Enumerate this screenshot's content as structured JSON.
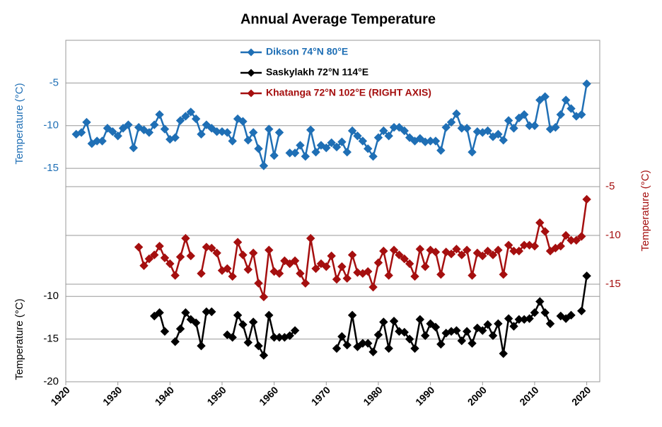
{
  "chart_data": {
    "type": "line",
    "title": "Annual Average Temperature",
    "ylabel": "Temperature (°C)",
    "y2label": "Temperature (°C)",
    "y3label": "Temperature (°C)",
    "x": [
      1922,
      1923,
      1924,
      1925,
      1926,
      1927,
      1928,
      1929,
      1930,
      1931,
      1932,
      1933,
      1934,
      1935,
      1936,
      1937,
      1938,
      1939,
      1940,
      1941,
      1942,
      1943,
      1944,
      1945,
      1946,
      1947,
      1948,
      1949,
      1950,
      1951,
      1952,
      1953,
      1954,
      1955,
      1956,
      1957,
      1958,
      1959,
      1960,
      1961,
      1962,
      1963,
      1964,
      1965,
      1966,
      1967,
      1968,
      1969,
      1970,
      1971,
      1972,
      1973,
      1974,
      1975,
      1976,
      1977,
      1978,
      1979,
      1980,
      1981,
      1982,
      1983,
      1984,
      1985,
      1986,
      1987,
      1988,
      1989,
      1990,
      1991,
      1992,
      1993,
      1994,
      1995,
      1996,
      1997,
      1998,
      1999,
      2000,
      2001,
      2002,
      2003,
      2004,
      2005,
      2006,
      2007,
      2008,
      2009,
      2010,
      2011,
      2012,
      2013,
      2014,
      2015,
      2016,
      2017,
      2018,
      2019,
      2020
    ],
    "xlim": [
      1920,
      2022.5
    ],
    "xticks": [
      1920,
      1930,
      1940,
      1950,
      1960,
      1970,
      1980,
      1990,
      2000,
      2010,
      2020
    ],
    "ylim": [
      -40,
      0
    ],
    "yticks": [
      -5,
      -10,
      -15
    ],
    "y2lim": [
      -25,
      10
    ],
    "y2ticks": [
      -5,
      -10,
      -15
    ],
    "y3lim": [
      -20,
      20
    ],
    "y3ticks": [
      -10,
      -15,
      -20
    ],
    "grid": true,
    "legend": "top-left",
    "series": [
      {
        "name": "Dikson 74°N 80°E",
        "color": "#1f6fb5",
        "axis": "y",
        "values": [
          -11.0,
          -10.8,
          -9.6,
          -12.1,
          -11.8,
          -11.8,
          -10.3,
          -10.7,
          -11.2,
          -10.3,
          -9.9,
          -12.6,
          -10.2,
          -10.5,
          -10.8,
          -9.9,
          -8.7,
          -10.4,
          -11.6,
          -11.4,
          -9.4,
          -8.9,
          -8.4,
          -9.2,
          -11.0,
          -9.9,
          -10.3,
          -10.7,
          -10.7,
          -10.8,
          -11.8,
          -9.2,
          -9.5,
          -11.7,
          -10.8,
          -12.7,
          -14.7,
          -10.4,
          -13.5,
          -10.8,
          null,
          -13.2,
          -13.2,
          -12.3,
          -13.6,
          -10.5,
          -13.1,
          -12.3,
          -12.6,
          -12.0,
          -12.5,
          -11.9,
          -13.1,
          -10.6,
          -11.2,
          -11.8,
          -12.7,
          -13.6,
          -11.4,
          -10.6,
          -11.2,
          -10.2,
          -10.2,
          -10.6,
          -11.4,
          -11.8,
          -11.5,
          -11.9,
          -11.8,
          -11.8,
          -12.9,
          -10.2,
          -9.6,
          -8.6,
          -10.3,
          -10.3,
          -13.1,
          -10.7,
          -10.8,
          -10.6,
          -11.3,
          -11.0,
          -11.7,
          -9.4,
          -10.3,
          -9.1,
          -8.7,
          -10.0,
          -10.0,
          -7.0,
          -6.6,
          -10.4,
          -10.2,
          -8.7,
          -7.0,
          -8.0,
          -8.9,
          -8.7,
          -5.1
        ]
      },
      {
        "name": "Saskylakh 72°N 114°E",
        "color": "#000000",
        "axis": "y3",
        "values": [
          null,
          null,
          null,
          null,
          null,
          null,
          null,
          null,
          null,
          null,
          null,
          null,
          null,
          null,
          null,
          -12.3,
          -11.9,
          -14.1,
          null,
          -15.3,
          -13.8,
          -11.9,
          -12.7,
          -13.1,
          -15.8,
          -11.8,
          -11.8,
          null,
          null,
          -14.5,
          -14.8,
          -12.2,
          -13.3,
          -15.4,
          -13.0,
          -15.8,
          -16.9,
          -12.2,
          -14.8,
          -14.8,
          -14.8,
          -14.6,
          -14.0,
          null,
          null,
          null,
          null,
          null,
          null,
          null,
          -16.1,
          -14.7,
          -15.7,
          -12.2,
          -15.9,
          -15.5,
          -15.5,
          -16.5,
          -14.5,
          -13.0,
          -16.1,
          -12.9,
          -14.1,
          -14.2,
          -15.0,
          -16.1,
          -12.7,
          -14.6,
          -13.2,
          -13.6,
          -15.6,
          -14.3,
          -14.1,
          -14.0,
          -15.2,
          -14.1,
          -15.5,
          -13.7,
          -14.0,
          -13.3,
          -14.6,
          -13.2,
          -16.7,
          -12.6,
          -13.5,
          -12.7,
          -12.7,
          -12.6,
          -11.9,
          -10.6,
          -11.9,
          -13.2,
          null,
          -12.3,
          -12.6,
          -12.2,
          null,
          -11.7,
          -7.6
        ]
      },
      {
        "name": "Khatanga 72°N 102°E (RIGHT AXIS)",
        "color": "#a50f0f",
        "axis": "y2",
        "values": [
          null,
          null,
          null,
          null,
          null,
          null,
          null,
          null,
          null,
          null,
          null,
          null,
          -11.2,
          -13.1,
          -12.4,
          -12.0,
          -11.1,
          -12.3,
          -12.9,
          -14.1,
          -12.2,
          -10.3,
          -12.1,
          null,
          -13.9,
          -11.2,
          -11.3,
          -11.8,
          -13.6,
          -13.4,
          -14.2,
          -10.7,
          -12.0,
          -13.5,
          -11.8,
          -14.9,
          -16.3,
          -11.5,
          -13.7,
          -13.9,
          -12.6,
          -12.9,
          -12.6,
          -13.9,
          -14.9,
          -10.3,
          -13.4,
          -12.9,
          -13.2,
          -12.1,
          -14.5,
          -13.2,
          -14.4,
          -12.0,
          -13.8,
          -13.9,
          -13.7,
          -15.3,
          -12.8,
          -11.6,
          -14.1,
          -11.5,
          -12.0,
          -12.4,
          -12.9,
          -14.2,
          -11.4,
          -13.2,
          -11.5,
          -11.7,
          -14.0,
          -11.7,
          -11.9,
          -11.4,
          -12.0,
          -11.5,
          -14.1,
          -11.8,
          -12.1,
          -11.6,
          -12.0,
          -11.5,
          -14.0,
          -11.0,
          -11.6,
          -11.6,
          -11.0,
          -11.0,
          -11.1,
          -8.7,
          -9.6,
          -11.6,
          -11.3,
          -11.1,
          -10.0,
          -10.5,
          -10.5,
          -10.1,
          -6.3
        ]
      }
    ]
  }
}
